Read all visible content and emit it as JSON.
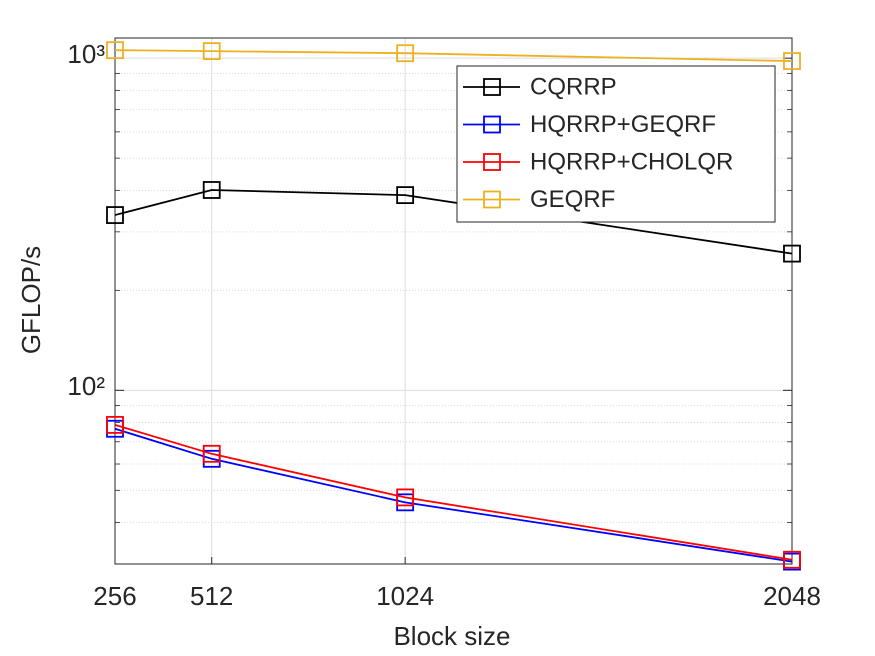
{
  "chart_data": {
    "type": "line",
    "x_label": "Block size",
    "y_label": "GFLOP/s",
    "x": [
      256,
      512,
      1024,
      2048
    ],
    "xlim": [
      256,
      2048
    ],
    "xticks": [
      256,
      512,
      1024,
      2048
    ],
    "ylim": [
      30,
      1150
    ],
    "log_y": true,
    "yticks": [
      {
        "value": 100,
        "label": "10²"
      },
      {
        "value": 1000,
        "label": "10³"
      }
    ],
    "minor_yticks": [
      40,
      50,
      60,
      70,
      80,
      90,
      200,
      300,
      400,
      500,
      600,
      700,
      800,
      900
    ],
    "grid": true,
    "legend": "northeast",
    "series": [
      {
        "name": "CQRRP",
        "color": "#000000",
        "values": [
          337,
          401,
          387,
          258
        ]
      },
      {
        "name": "HQRRP+GEQRF",
        "color": "#0000ff",
        "values": [
          76.6,
          62.2,
          46.0,
          30.5
        ]
      },
      {
        "name": "HQRRP+CHOLQR",
        "color": "#ff0000",
        "values": [
          78.7,
          64.4,
          47.6,
          30.9
        ]
      },
      {
        "name": "GEQRF",
        "color": "#edb120",
        "values": [
          1057,
          1050,
          1035,
          980
        ]
      }
    ]
  }
}
